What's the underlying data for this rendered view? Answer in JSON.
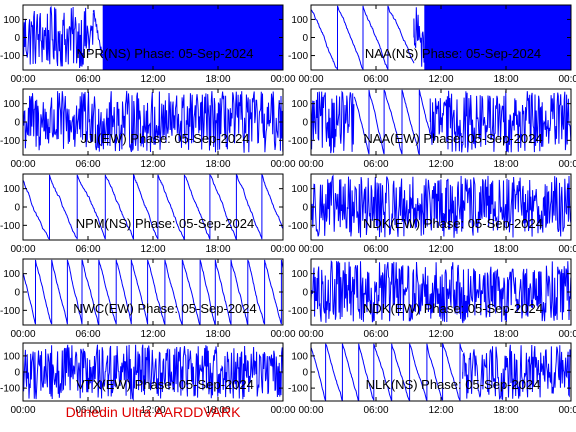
{
  "footer": {
    "text": "Dunedin Ultra AARDDVARK",
    "color": "#dd0000"
  },
  "chart_data": [
    {
      "type": "line",
      "title": "NPR(NS) Phase: 05-Sep-2024",
      "xticks": [
        "00:00",
        "06:00",
        "12:00",
        "18:00",
        "00:00"
      ],
      "xlim": [
        0,
        24
      ],
      "ylim": [
        -180,
        180
      ],
      "yticks": [
        100,
        0,
        -100
      ],
      "color": "#0000ff",
      "style": "mixed",
      "segments": [
        [
          0,
          6.5,
          "noise"
        ],
        [
          6.5,
          7.4,
          "ramp"
        ],
        [
          7.4,
          24,
          "fill"
        ]
      ]
    },
    {
      "type": "line",
      "title": "NAA(NS) Phase: 05-Sep-2024",
      "xticks": [
        "00:00",
        "06:00",
        "12:00",
        "18:00",
        "00:00"
      ],
      "xlim": [
        0,
        24
      ],
      "ylim": [
        -180,
        180
      ],
      "yticks": [
        100,
        0,
        -100
      ],
      "color": "#0000ff",
      "style": "mixed",
      "segments": [
        [
          0,
          9.5,
          "sawtooth"
        ],
        [
          9.5,
          10.5,
          "noise"
        ],
        [
          10.5,
          24,
          "fill"
        ]
      ]
    },
    {
      "type": "line",
      "title": "JJI(EW) Phase: 05-Sep-2024",
      "xticks": [
        "00:00",
        "06:00",
        "12:00",
        "18:00",
        "00:00"
      ],
      "xlim": [
        0,
        24
      ],
      "ylim": [
        -180,
        180
      ],
      "yticks": [
        100,
        0,
        -100
      ],
      "color": "#0000ff",
      "style": "noise"
    },
    {
      "type": "line",
      "title": "NAA(EW) Phase: 05-Sep-2024",
      "xticks": [
        "00:00",
        "06:00",
        "12:00",
        "18:00",
        "00:00"
      ],
      "xlim": [
        0,
        24
      ],
      "ylim": [
        -180,
        180
      ],
      "yticks": [
        100,
        0,
        -100
      ],
      "color": "#0000ff",
      "style": "mixed",
      "segments": [
        [
          0,
          4,
          "noise"
        ],
        [
          4,
          11,
          "sawtooth"
        ],
        [
          11,
          24,
          "noise"
        ]
      ]
    },
    {
      "type": "line",
      "title": "NPM(NS) Phase: 05-Sep-2024",
      "xticks": [
        "00:00",
        "06:00",
        "12:00",
        "18:00",
        "00:00"
      ],
      "xlim": [
        0,
        24
      ],
      "ylim": [
        -180,
        180
      ],
      "yticks": [
        100,
        0,
        -100
      ],
      "color": "#0000ff",
      "style": "sawtooth"
    },
    {
      "type": "line",
      "title": "NDK(EW) Phase: 05-Sep-2024",
      "xticks": [
        "00:00",
        "06:00",
        "12:00",
        "18:00",
        "00:00"
      ],
      "xlim": [
        0,
        24
      ],
      "ylim": [
        -180,
        180
      ],
      "yticks": [
        100,
        0,
        -100
      ],
      "color": "#0000ff",
      "style": "noise"
    },
    {
      "type": "line",
      "title": "NWC(EW) Phase: 05-Sep-2024",
      "xticks": [
        "00:00",
        "06:00",
        "12:00",
        "18:00",
        "00:00"
      ],
      "xlim": [
        0,
        24
      ],
      "ylim": [
        -180,
        180
      ],
      "yticks": [
        100,
        0,
        -100
      ],
      "color": "#0000ff",
      "style": "sawtooth"
    },
    {
      "type": "line",
      "title": "NDK(EW) Phase: 05-Sep-2024",
      "xticks": [
        "00:00",
        "06:00",
        "12:00",
        "18:00",
        "00:00"
      ],
      "xlim": [
        0,
        24
      ],
      "ylim": [
        -180,
        180
      ],
      "yticks": [
        100,
        0,
        -100
      ],
      "color": "#0000ff",
      "style": "noise"
    },
    {
      "type": "line",
      "title": "VTX(EW) Phase: 05-Sep-2024",
      "xticks": [
        "00:00",
        "06:00",
        "12:00",
        "18:00",
        "00:00"
      ],
      "xlim": [
        0,
        24
      ],
      "ylim": [
        -180,
        180
      ],
      "yticks": [
        100,
        0,
        -100
      ],
      "color": "#0000ff",
      "style": "noise"
    },
    {
      "type": "line",
      "title": "NLK(NS) Phase: 05-Sep-2024",
      "xticks": [
        "00:00",
        "06:00",
        "12:00",
        "18:00",
        "00:00"
      ],
      "xlim": [
        0,
        24
      ],
      "ylim": [
        -180,
        180
      ],
      "yticks": [
        100,
        0,
        -100
      ],
      "color": "#0000ff",
      "style": "mixed",
      "segments": [
        [
          0,
          14,
          "sawtooth"
        ],
        [
          14,
          24,
          "noise"
        ]
      ]
    }
  ]
}
